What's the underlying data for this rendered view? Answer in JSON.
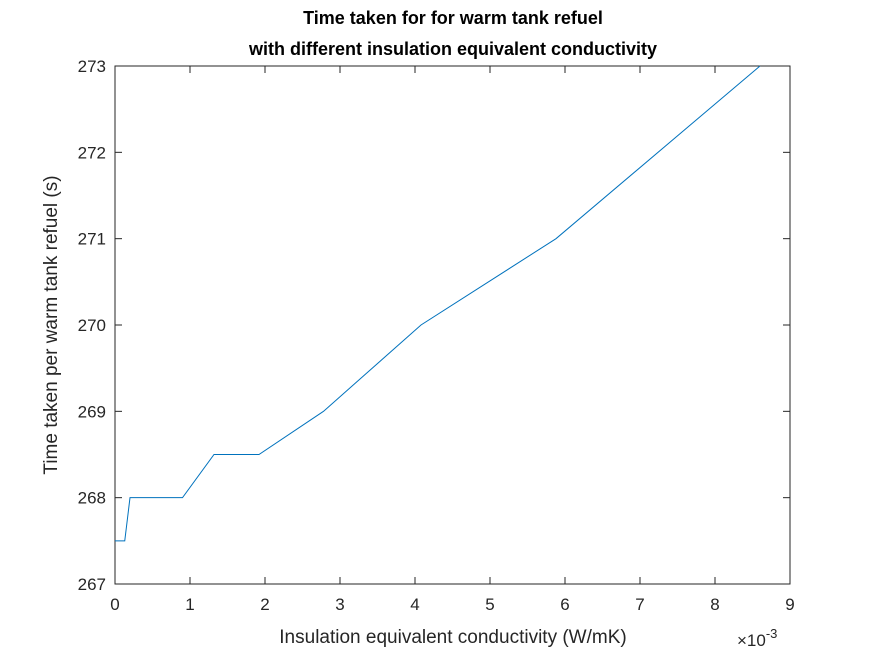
{
  "chart_data": {
    "type": "line",
    "title_lines": [
      "Time taken for for warm tank refuel",
      "with different insulation equivalent conductivity"
    ],
    "xlabel": "Insulation equivalent conductivity (W/mK)",
    "ylabel": "Time taken per warm tank refuel (s)",
    "x_exponent_label": {
      "base": "×10",
      "exponent": "-3"
    },
    "x_scale_factor": 0.001,
    "xlim": [
      0,
      9
    ],
    "ylim": [
      267,
      273
    ],
    "xticks": [
      "0",
      "1",
      "2",
      "3",
      "4",
      "5",
      "6",
      "7",
      "8",
      "9"
    ],
    "yticks": [
      "267",
      "268",
      "269",
      "270",
      "271",
      "272",
      "273"
    ],
    "grid": false,
    "box": true,
    "colors": {
      "line": "#0072BD",
      "axes": "#262626"
    },
    "series": [
      {
        "x": [
          0,
          0.13,
          0.2,
          0.9,
          1.32,
          1.92,
          2.78,
          4.08,
          5.88,
          8.6
        ],
        "y": [
          267.5,
          267.5,
          268,
          268,
          268.5,
          268.5,
          269,
          270,
          271,
          273
        ]
      }
    ]
  }
}
